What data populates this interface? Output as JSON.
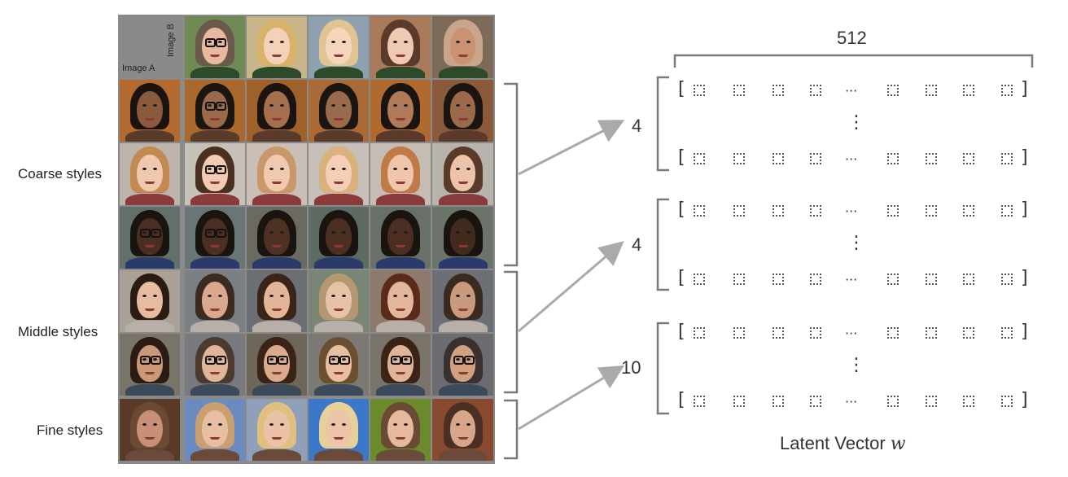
{
  "labels": {
    "image_a": "Image A",
    "image_b": "Image B",
    "coarse": "Coarse styles",
    "middle": "Middle styles",
    "fine": "Fine styles"
  },
  "latent": {
    "dimension": "512",
    "title_prefix": "Latent Vector ",
    "title_symbol": "w",
    "groups": [
      {
        "count": "4"
      },
      {
        "count": "4"
      },
      {
        "count": "10"
      }
    ],
    "ellipsis": "···",
    "vertical_ellipsis": "⋮",
    "open_bracket": "[",
    "close_bracket": "]"
  },
  "colors": {
    "arrow": "#aaaaaa",
    "brace": "#7a7a7a",
    "grid_line": "#8a8a8a"
  }
}
